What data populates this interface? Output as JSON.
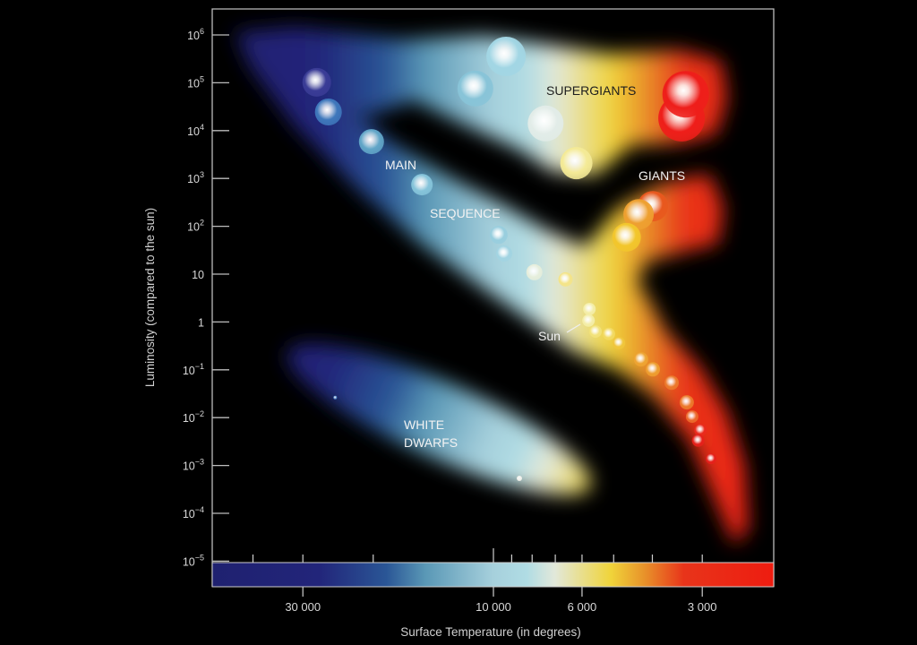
{
  "chart_data": {
    "type": "scatter",
    "title": "",
    "xlabel": "Surface Temperature (in degrees)",
    "ylabel": "Luminosity (compared to the sun)",
    "x_scale": "log-reversed",
    "y_scale": "log",
    "xlim": [
      50600,
      1990
    ],
    "ylim_log10": [
      -5,
      6.55
    ],
    "y_ticks": [
      {
        "log": 6,
        "base": "10",
        "exp": "6"
      },
      {
        "log": 5,
        "base": "10",
        "exp": "5"
      },
      {
        "log": 4,
        "base": "10",
        "exp": "4"
      },
      {
        "log": 3,
        "base": "10",
        "exp": "3"
      },
      {
        "log": 2,
        "base": "10",
        "exp": "2"
      },
      {
        "log": 1,
        "base": "10",
        "exp": ""
      },
      {
        "log": 0,
        "base": "1",
        "exp": ""
      },
      {
        "log": -1,
        "base": "10",
        "exp": "−1"
      },
      {
        "log": -2,
        "base": "10",
        "exp": "−2"
      },
      {
        "log": -3,
        "base": "10",
        "exp": "−3"
      },
      {
        "log": -4,
        "base": "10",
        "exp": "−4"
      },
      {
        "log": -5,
        "base": "10",
        "exp": "−5"
      }
    ],
    "x_ticks": [
      40000,
      30000,
      20000,
      10000,
      9000,
      8000,
      7000,
      6000,
      5000,
      4000,
      3000
    ],
    "x_tick_labels": [
      {
        "value": 30000,
        "label": "30 000"
      },
      {
        "value": 10000,
        "label": "10 000"
      },
      {
        "value": 6000,
        "label": "6 000"
      },
      {
        "value": 3000,
        "label": "3 000"
      }
    ],
    "colorbar": [
      {
        "t": 0.0,
        "color": "#1f2170"
      },
      {
        "t": 0.19,
        "color": "#22257a"
      },
      {
        "t": 0.31,
        "color": "#2a5696"
      },
      {
        "t": 0.38,
        "color": "#5a98b6"
      },
      {
        "t": 0.5,
        "color": "#a6d0dc"
      },
      {
        "t": 0.56,
        "color": "#b0dce4"
      },
      {
        "t": 0.61,
        "color": "#e2e8da"
      },
      {
        "t": 0.71,
        "color": "#f0d43a"
      },
      {
        "t": 0.77,
        "color": "#e8922a"
      },
      {
        "t": 0.84,
        "color": "#e8341a"
      },
      {
        "t": 1.0,
        "color": "#ee1c10"
      }
    ],
    "regions": [
      {
        "name": "supergiants",
        "label": "SUPERGIANTS",
        "T": 6400,
        "logL": 4.9,
        "color": "#222222"
      },
      {
        "name": "giants",
        "label": "GIANTS",
        "T": 4000,
        "logL": 3.0,
        "color": "#f2f2f2"
      },
      {
        "name": "main",
        "label": "MAIN",
        "T": 23000,
        "logL": 3.2,
        "color": "#f2f2f2"
      },
      {
        "name": "sequence",
        "label": "SEQUENCE",
        "T": 14000,
        "logL": 2.2,
        "color": "#f2f2f2"
      },
      {
        "name": "white-dwarfs-1",
        "label": "WHITE",
        "T": 19500,
        "logL": -2.1,
        "color": "#f2f2f2"
      },
      {
        "name": "white-dwarfs-2",
        "label": "DWARFS",
        "T": 19500,
        "logL": -2.5,
        "color": "#f2f2f2"
      }
    ],
    "sun_label": "Sun",
    "stars": [
      {
        "T": 27700,
        "logL": 5.01,
        "color": "#3a3c96"
      },
      {
        "T": 25900,
        "logL": 4.39,
        "color": "#3f78bc"
      },
      {
        "T": 20200,
        "logL": 3.77,
        "color": "#62a6c8"
      },
      {
        "T": 15100,
        "logL": 2.87,
        "color": "#86c4da"
      },
      {
        "T": 9300,
        "logL": 5.55,
        "color": "#a2d6e4"
      },
      {
        "T": 11100,
        "logL": 4.88,
        "color": "#88c4d8"
      },
      {
        "T": 7400,
        "logL": 4.15,
        "color": "#e2ece8"
      },
      {
        "T": 6200,
        "logL": 3.32,
        "color": "#f4ea96"
      },
      {
        "T": 3300,
        "logL": 4.76,
        "color": "#ee1e1a"
      },
      {
        "T": 3380,
        "logL": 4.26,
        "color": "#ee1e1a"
      },
      {
        "T": 3990,
        "logL": 2.42,
        "color": "#e8581e"
      },
      {
        "T": 4330,
        "logL": 2.25,
        "color": "#eea030"
      },
      {
        "T": 4640,
        "logL": 1.77,
        "color": "#f2c62c"
      },
      {
        "T": 9700,
        "logL": 1.82,
        "color": "#98cede"
      },
      {
        "T": 9400,
        "logL": 1.43,
        "color": "#a2d4e2"
      },
      {
        "T": 7900,
        "logL": 1.04,
        "color": "#e6eedc"
      },
      {
        "T": 6600,
        "logL": 0.89,
        "color": "#f4e488"
      },
      {
        "T": 5750,
        "logL": 0.27,
        "color": "#f4eea8"
      },
      {
        "T": 5780,
        "logL": 0.03,
        "color": "#f4eea8"
      },
      {
        "T": 5550,
        "logL": -0.2,
        "color": "#f2e27a"
      },
      {
        "T": 5140,
        "logL": -0.25,
        "color": "#f2da62"
      },
      {
        "T": 4850,
        "logL": -0.44,
        "color": "#f0c63c"
      },
      {
        "T": 4270,
        "logL": -0.78,
        "color": "#eea432"
      },
      {
        "T": 3990,
        "logL": -0.99,
        "color": "#ee9e30"
      },
      {
        "T": 3580,
        "logL": -1.27,
        "color": "#ec7a2c"
      },
      {
        "T": 3280,
        "logL": -1.68,
        "color": "#ec7a2c"
      },
      {
        "T": 3180,
        "logL": -1.98,
        "color": "#ec6a2c"
      },
      {
        "T": 3030,
        "logL": -2.26,
        "color": "#ea2a1c"
      },
      {
        "T": 3070,
        "logL": -2.48,
        "color": "#e6201a"
      },
      {
        "T": 2850,
        "logL": -2.86,
        "color": "#e6201a"
      },
      {
        "T": 8610,
        "logL": -3.27,
        "color": "#f0f0ea"
      },
      {
        "T": 24900,
        "logL": -1.58,
        "color": "#5a8ed0"
      }
    ],
    "sun_index": 18,
    "frame_color": "#bdbdbd"
  }
}
